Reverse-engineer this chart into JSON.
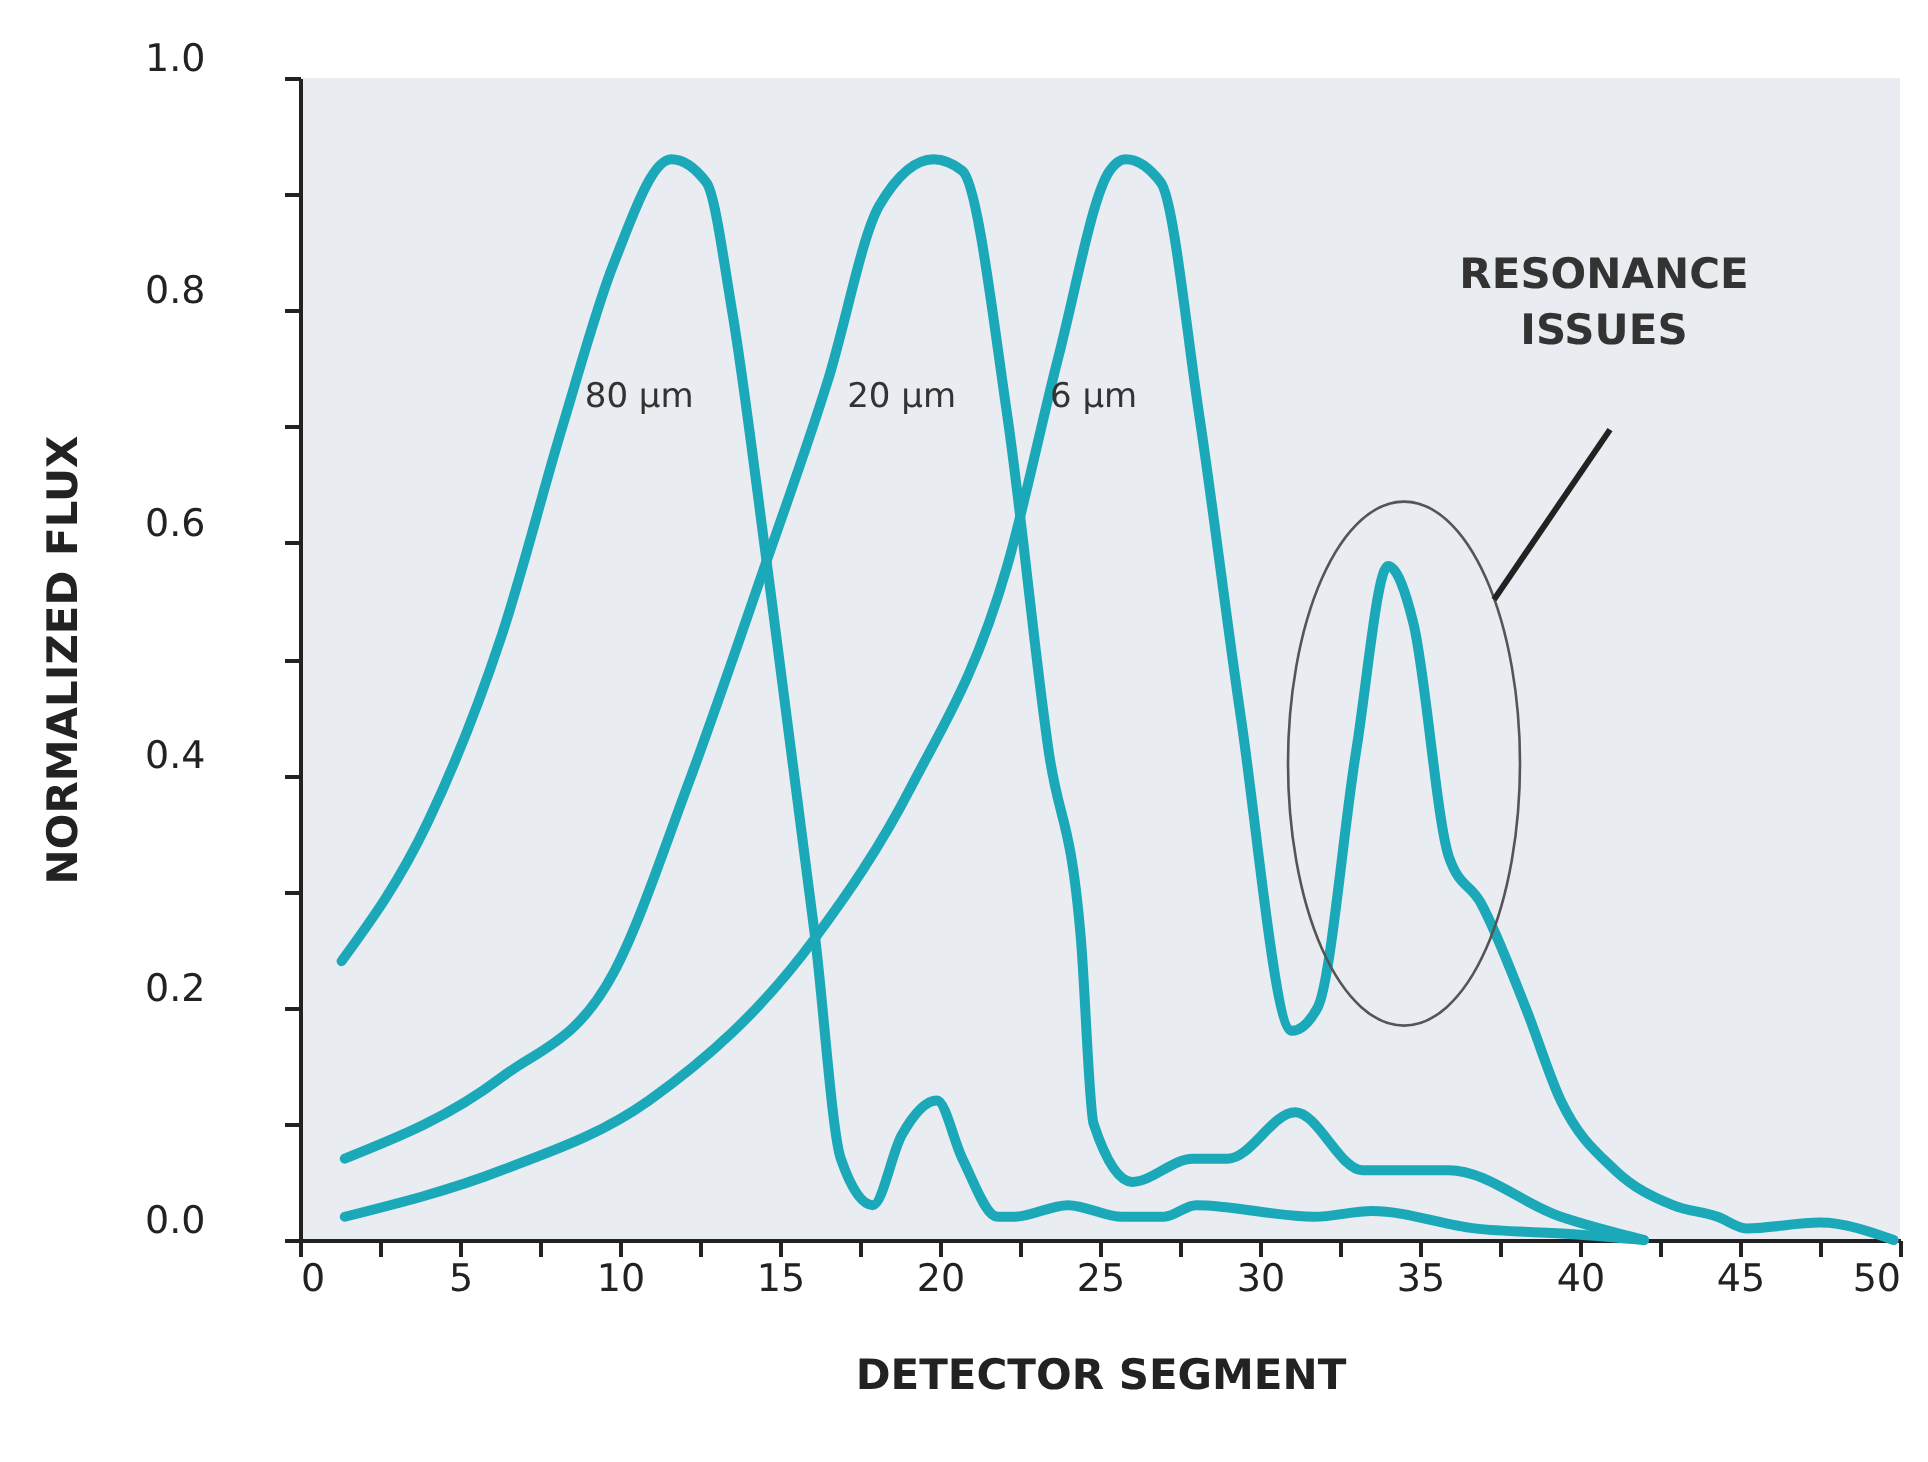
{
  "chart_data": {
    "type": "line",
    "xlabel": "DETECTOR SEGMENT",
    "ylabel": "NORMALIZED FLUX",
    "xlim": [
      0,
      50
    ],
    "ylim": [
      0,
      1
    ],
    "xticks": [
      0,
      {
        "value": 2.5,
        "label": null
      },
      5,
      {
        "value": 7.5,
        "label": null
      },
      10,
      {
        "value": 12.5,
        "label": null
      },
      15,
      {
        "value": 17.5,
        "label": null
      },
      20,
      {
        "value": 22.5,
        "label": null
      },
      25,
      {
        "value": 27.5,
        "label": null
      },
      30,
      {
        "value": 32.5,
        "label": null
      },
      35,
      {
        "value": 37.5,
        "label": null
      },
      40,
      {
        "value": 42.5,
        "label": null
      },
      45,
      {
        "value": 47.5,
        "label": null
      },
      50
    ],
    "yticks": [
      {
        "value": 0,
        "label": "0.0"
      },
      {
        "value": 0.1,
        "label": null
      },
      0.2,
      {
        "value": 0.3,
        "label": null
      },
      0.4,
      {
        "value": 0.5,
        "label": null
      },
      0.6,
      {
        "value": 0.7,
        "label": null
      },
      0.8,
      {
        "value": 0.9,
        "label": null
      },
      {
        "value": 1,
        "label": "1.0"
      }
    ],
    "grid": false,
    "legend": false,
    "marker": "none",
    "line_style": "solid",
    "series": [
      {
        "name": "80 µm",
        "color": "#1ba8b9",
        "x": [
          1.3,
          4,
          6.3,
          8.2,
          9.8,
          11.6,
          12.7,
          13.5,
          14.6,
          16.1,
          16.9,
          17.9,
          18.8,
          19.9,
          20.7,
          21.8,
          22.3,
          24,
          25.7,
          27,
          28,
          31.7,
          33.5,
          36.7,
          39.8,
          42
        ],
        "values": [
          0.24,
          0.36,
          0.52,
          0.7,
          0.84,
          0.93,
          0.91,
          0.8,
          0.58,
          0.26,
          0.07,
          0.03,
          0.09,
          0.12,
          0.07,
          0.02,
          0.02,
          0.03,
          0.02,
          0.02,
          0.03,
          0.02,
          0.025,
          0.01,
          0.005,
          0
        ]
      },
      {
        "name": "20 µm",
        "color": "#1ba8b9",
        "x": [
          1.4,
          6.3,
          9.8,
          12.1,
          14.4,
          16.5,
          18.1,
          19.8,
          20.7,
          22.1,
          23.4,
          24.4,
          24.8,
          26,
          27.9,
          29,
          31.1,
          33.2,
          35.9,
          39.4,
          40.6,
          42
        ],
        "values": [
          0.07,
          0.14,
          0.23,
          0.39,
          0.57,
          0.74,
          0.89,
          0.93,
          0.92,
          0.71,
          0.42,
          0.26,
          0.1,
          0.05,
          0.07,
          0.07,
          0.11,
          0.06,
          0.06,
          0.02,
          0.01,
          0
        ]
      },
      {
        "name": "6 µm",
        "color": "#1ba8b9",
        "x": [
          1.4,
          6.3,
          10.9,
          16.1,
          19.1,
          22.1,
          23.7,
          25.3,
          25.8,
          26.9,
          28.1,
          29.4,
          31,
          31.8,
          33,
          34,
          34.8,
          35.9,
          36.9,
          38.3,
          39.4,
          41.1,
          42.9,
          44.3,
          45.2,
          47.5,
          49.8
        ],
        "values": [
          0.02,
          0.06,
          0.12,
          0.26,
          0.39,
          0.58,
          0.76,
          0.92,
          0.93,
          0.91,
          0.71,
          0.45,
          0.18,
          0.2,
          0.42,
          0.58,
          0.53,
          0.33,
          0.29,
          0.2,
          0.12,
          0.06,
          0.03,
          0.02,
          0.01,
          0.015,
          0
        ]
      }
    ],
    "annotations": [
      "RESONANCE ISSUES"
    ]
  }
}
